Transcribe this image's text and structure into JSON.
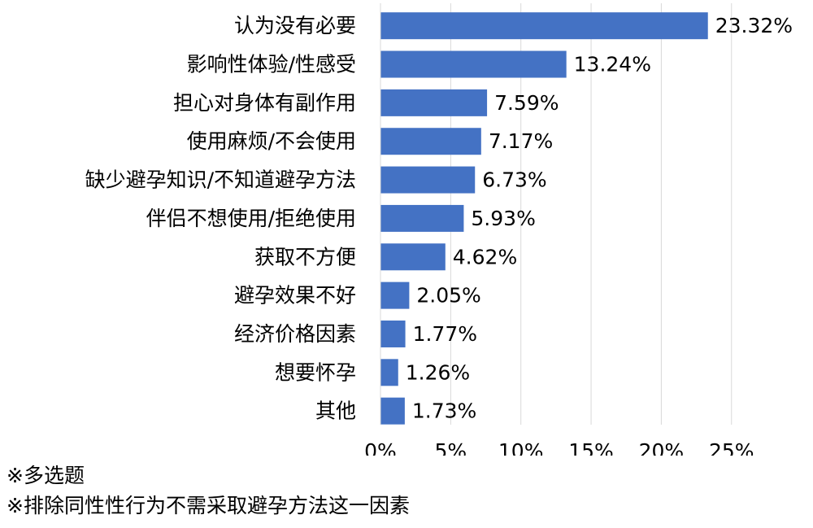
{
  "chart_data": {
    "type": "bar",
    "orientation": "horizontal",
    "categories": [
      "认为没有必要",
      "影响性体验/性感受",
      "担心对身体有副作用",
      "使用麻烦/不会使用",
      "缺少避孕知识/不知道避孕方法",
      "伴侣不想使用/拒绝使用",
      "获取不方便",
      "避孕效果不好",
      "经济价格因素",
      "想要怀孕",
      "其他"
    ],
    "values": [
      23.32,
      13.24,
      7.59,
      7.17,
      6.73,
      5.93,
      4.62,
      2.05,
      1.77,
      1.26,
      1.73
    ],
    "value_labels": [
      "23.32%",
      "13.24%",
      "7.59%",
      "7.17%",
      "6.73%",
      "5.93%",
      "4.62%",
      "2.05%",
      "1.77%",
      "1.26%",
      "1.73%"
    ],
    "xlim": [
      0,
      25
    ],
    "x_ticks": [
      0,
      5,
      10,
      15,
      20,
      25
    ],
    "x_tick_labels": [
      "0%",
      "5%",
      "10%",
      "15%",
      "20%",
      "25%"
    ],
    "title": "",
    "xlabel": "",
    "ylabel": "",
    "grid": "vertical",
    "legend": "none",
    "bar_color": "#4472C4",
    "grid_color": "#D9D9D9"
  },
  "footnotes": [
    "※多选题",
    "※排除同性性行为不需采取避孕方法这一因素"
  ]
}
